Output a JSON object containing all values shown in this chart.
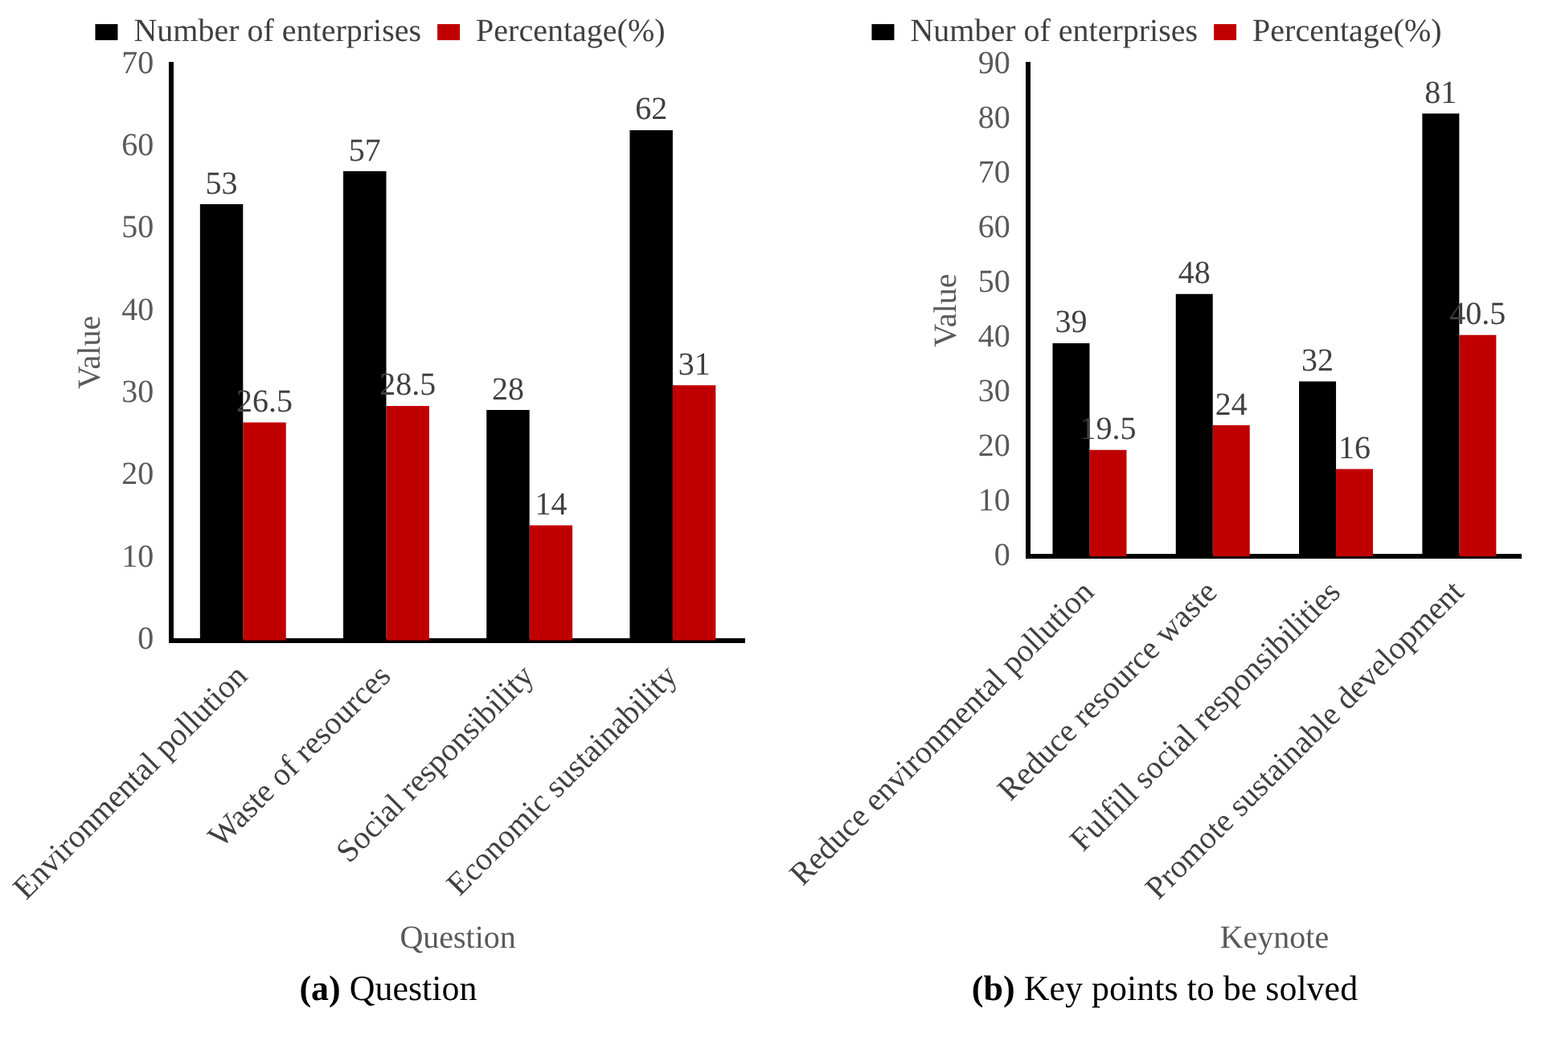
{
  "chart_data": [
    {
      "type": "bar",
      "categories": [
        "Environmental pollution",
        "Waste of resources",
        "Social responsibility",
        "Economic sustainability"
      ],
      "series": [
        {
          "name": "Number of enterprises",
          "color": "#000000",
          "values": [
            53,
            57,
            28,
            62
          ]
        },
        {
          "name": "Percentage(%)",
          "color": "#c00000",
          "values": [
            26.5,
            28.5,
            14,
            31
          ]
        }
      ],
      "xlabel": "Question",
      "ylabel": "Value",
      "ylim": [
        0,
        70
      ],
      "yticks": [
        0,
        10,
        20,
        30,
        40,
        50,
        60,
        70
      ],
      "grid": false,
      "legend": "top",
      "data_labels": true,
      "annotations": [
        "(a) Question"
      ]
    },
    {
      "type": "bar",
      "categories": [
        "Reduce environmental pollution",
        "Reduce resource waste",
        "Fulfill social responsibilities",
        "Promote sustainable development"
      ],
      "series": [
        {
          "name": "Number of enterprises",
          "color": "#000000",
          "values": [
            39,
            48,
            32,
            81
          ]
        },
        {
          "name": "Percentage(%)",
          "color": "#c00000",
          "values": [
            19.5,
            24,
            16,
            40.5
          ]
        }
      ],
      "xlabel": "Keynote",
      "ylabel": "Value",
      "ylim": [
        0,
        90
      ],
      "yticks": [
        0,
        10,
        20,
        30,
        40,
        50,
        60,
        70,
        80,
        90
      ],
      "grid": false,
      "legend": "top",
      "data_labels": true,
      "annotations": [
        "(b) Key points to be solved"
      ]
    }
  ]
}
